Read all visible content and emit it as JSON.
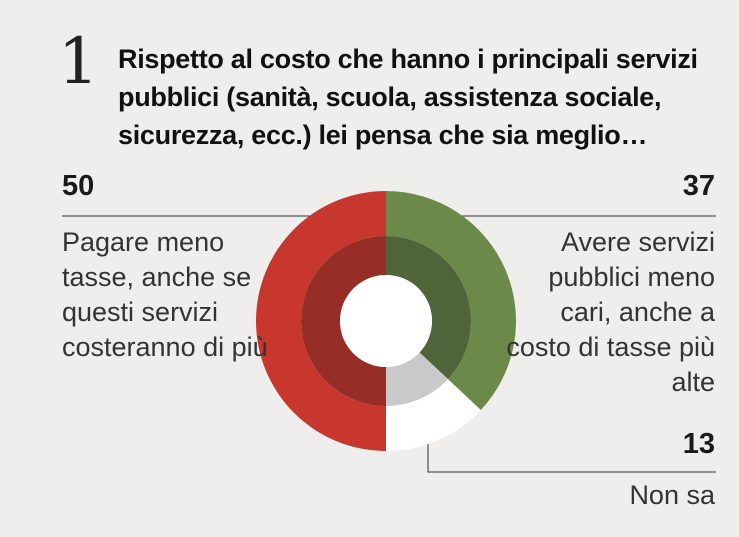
{
  "question": {
    "number": "1",
    "title": "Rispetto al costo che hanno i principali servizi pubblici (sanità, scuola, assistenza sociale, sicurezza,  ecc.) lei pensa che sia meglio…"
  },
  "colors": {
    "red": "#c8372d",
    "red_inner": "#962d26",
    "green": "#6b8a4a",
    "green_inner": "#4f6439",
    "white": "#ffffff",
    "white_inner": "#c9c9c9",
    "line": "#333333"
  },
  "chart_data": {
    "type": "pie",
    "donut": true,
    "categories": [
      "Pagare meno tasse, anche se questi servizi costeranno di più",
      "Avere servizi pubblici meno cari, anche a costo di tasse più alte",
      "Non sa"
    ],
    "values": [
      50,
      37,
      13
    ],
    "value_labels": [
      "50",
      "37",
      "13"
    ]
  }
}
